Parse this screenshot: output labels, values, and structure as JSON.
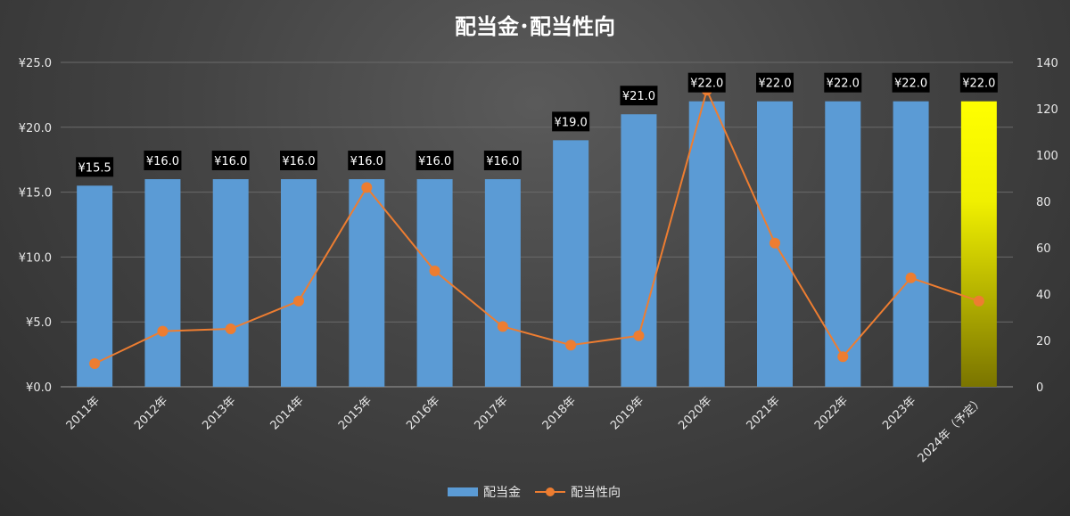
{
  "chart_data": {
    "type": "bar",
    "title": "配当金･配当性向",
    "categories": [
      "2011年",
      "2012年",
      "2013年",
      "2014年",
      "2015年",
      "2016年",
      "2017年",
      "2018年",
      "2019年",
      "2020年",
      "2021年",
      "2022年",
      "2023年",
      "2024年（予定）"
    ],
    "series": [
      {
        "name": "配当金",
        "type": "bar",
        "axis": "left",
        "values": [
          15.5,
          16.0,
          16.0,
          16.0,
          16.0,
          16.0,
          16.0,
          19.0,
          21.0,
          22.0,
          22.0,
          22.0,
          22.0,
          22.0
        ],
        "labels": [
          "¥15.5",
          "¥16.0",
          "¥16.0",
          "¥16.0",
          "¥16.0",
          "¥16.0",
          "¥16.0",
          "¥19.0",
          "¥21.0",
          "¥22.0",
          "¥22.0",
          "¥22.0",
          "¥22.0",
          "¥22.0"
        ],
        "color": "#5b9bd5",
        "highlight_last_color": "#ffff00"
      },
      {
        "name": "配当性向",
        "type": "line",
        "axis": "right",
        "values": [
          10,
          24,
          25,
          37,
          86,
          50,
          26,
          18,
          22,
          128,
          62,
          13,
          47,
          37
        ],
        "color": "#ed7d31"
      }
    ],
    "y_left": {
      "min": 0,
      "max": 25,
      "step": 5,
      "tick_labels": [
        "¥0.0",
        "¥5.0",
        "¥10.0",
        "¥15.0",
        "¥20.0",
        "¥25.0"
      ]
    },
    "y_right": {
      "min": 0,
      "max": 140,
      "step": 20,
      "tick_labels": [
        "0",
        "20",
        "40",
        "60",
        "80",
        "100",
        "120",
        "140"
      ]
    },
    "grid": true,
    "legend_position": "bottom"
  }
}
